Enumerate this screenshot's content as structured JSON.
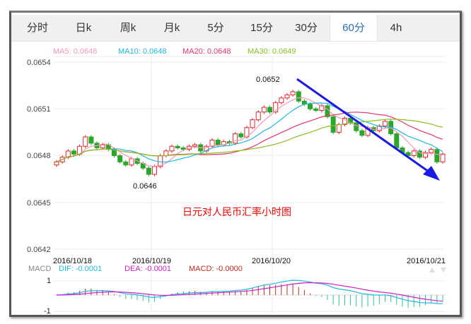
{
  "tabs": [
    {
      "label": "分时"
    },
    {
      "label": "日k"
    },
    {
      "label": "周k"
    },
    {
      "label": "月k"
    },
    {
      "label": "5分"
    },
    {
      "label": "15分"
    },
    {
      "label": "30分"
    },
    {
      "label": "60分",
      "active": true
    },
    {
      "label": "4h"
    }
  ],
  "legend": {
    "ma5": "MA5: 0.0648",
    "ma10": "MA10: 0.0648",
    "ma20": "MA20: 0.0648",
    "ma30": "MA30: 0.0649"
  },
  "y_ticks": [
    "0.0654",
    "0.0651",
    "0.0648",
    "0.0645",
    "0.0642"
  ],
  "dates": [
    "2016/10/18",
    "2016/10/19",
    "2016/10/20",
    "2016/10/21"
  ],
  "annotations": {
    "high": "0.0652",
    "low": "0.0646",
    "title": "日元对人民币汇率小时图"
  },
  "macd": {
    "label": "MACD",
    "dif": "DIF: -0.0001",
    "dea": "DEA: -0.0001",
    "macd": "MACD: -0.0000",
    "ticks": [
      "1",
      "-1"
    ]
  },
  "colors": {
    "ma5": "#f598b8",
    "ma10": "#1fb8e0",
    "ma20": "#e8356b",
    "ma30": "#8cbf1f",
    "up": "#e8252a",
    "down": "#2aa62a",
    "arrow": "#1a1ae6",
    "dif": "#1fb8e0",
    "dea": "#d020c8",
    "hist_up": "#c8281e",
    "hist_down": "#2ec48c"
  },
  "chart_data": {
    "type": "candlestick",
    "ylim": [
      0.0642,
      0.0654
    ],
    "closes": [
      0.06476,
      0.06479,
      0.06483,
      0.06481,
      0.06486,
      0.06492,
      0.06488,
      0.06485,
      0.06487,
      0.06484,
      0.0648,
      0.06476,
      0.06474,
      0.06478,
      0.06475,
      0.06472,
      0.06468,
      0.06473,
      0.0648,
      0.06483,
      0.06486,
      0.06485,
      0.06484,
      0.06486,
      0.06487,
      0.06483,
      0.06486,
      0.0649,
      0.06487,
      0.06489,
      0.06488,
      0.06494,
      0.06492,
      0.06498,
      0.06503,
      0.06508,
      0.06511,
      0.06508,
      0.06514,
      0.06517,
      0.06519,
      0.06521,
      0.06515,
      0.06513,
      0.0651,
      0.06509,
      0.06512,
      0.06505,
      0.06495,
      0.065,
      0.06504,
      0.06501,
      0.06496,
      0.06493,
      0.06498,
      0.06496,
      0.06499,
      0.06502,
      0.06494,
      0.06485,
      0.06482,
      0.0648,
      0.06483,
      0.06479,
      0.06482,
      0.06484,
      0.06476,
      0.06481
    ]
  }
}
